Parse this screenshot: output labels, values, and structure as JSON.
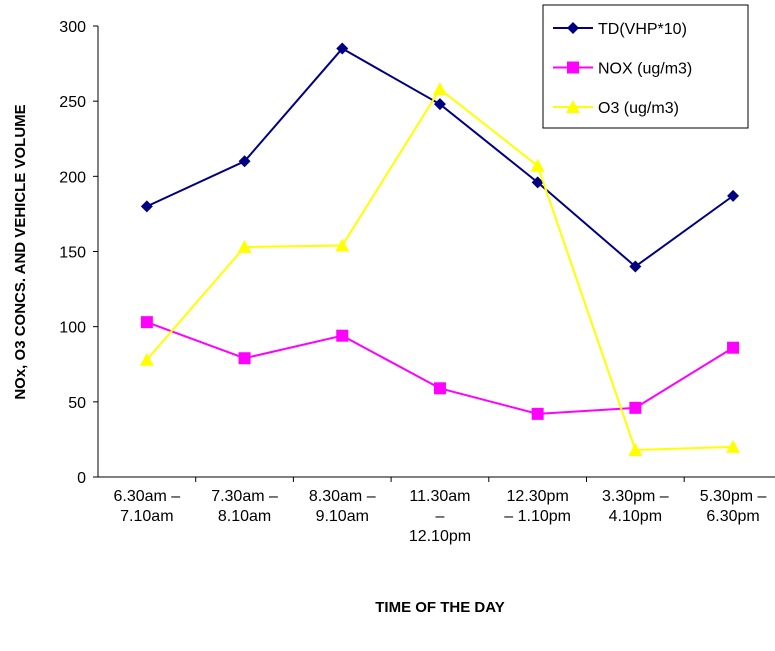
{
  "chart_data": {
    "type": "line",
    "x_label": "TIME OF THE DAY",
    "y_label": "NOx, O3 CONCS. AND VEHICLE VOLUME",
    "categories": [
      "6.30am –\n7.10am",
      "7.30am –\n8.10am",
      "8.30am –\n9.10am",
      "11.30am\n–\n12.10pm",
      "12.30pm\n– 1.10pm",
      "3.30pm –\n4.10pm",
      "5.30pm –\n6.30pm"
    ],
    "series": [
      {
        "name": "TD(VHP*10)",
        "color": "#000080",
        "marker": "diamond",
        "values": [
          180,
          210,
          285,
          248,
          196,
          140,
          187
        ]
      },
      {
        "name": "NOX (ug/m3)",
        "color": "#ff00ff",
        "marker": "square",
        "values": [
          103,
          79,
          94,
          59,
          42,
          46,
          86
        ]
      },
      {
        "name": "O3 (ug/m3)",
        "color": "#ffff00",
        "marker": "triangle",
        "values": [
          78,
          153,
          154,
          258,
          207,
          18,
          20
        ]
      }
    ],
    "ylim": [
      0,
      300
    ],
    "yticks": [
      0,
      50,
      100,
      150,
      200,
      250,
      300
    ],
    "legend": "upper right"
  }
}
